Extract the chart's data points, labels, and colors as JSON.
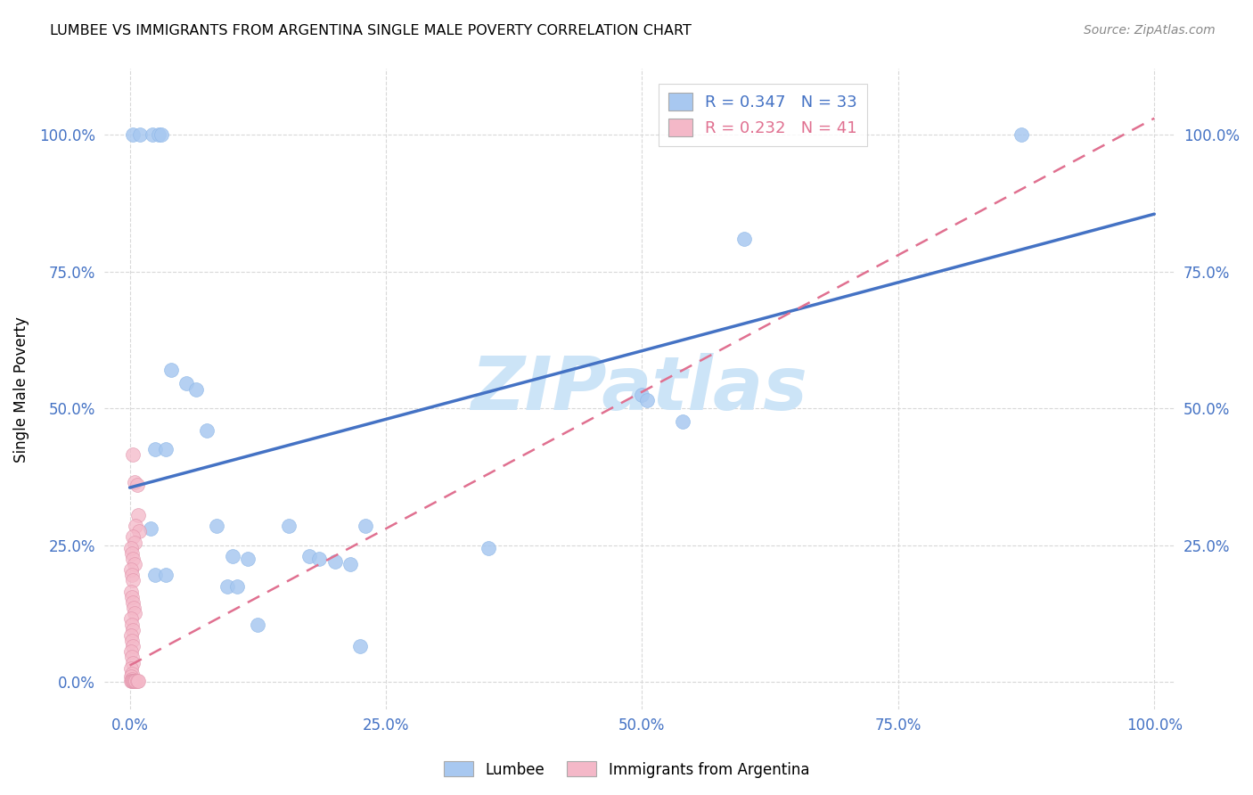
{
  "title": "LUMBEE VS IMMIGRANTS FROM ARGENTINA SINGLE MALE POVERTY CORRELATION CHART",
  "source": "Source: ZipAtlas.com",
  "ylabel": "Single Male Poverty",
  "lumbee_R": 0.347,
  "lumbee_N": 33,
  "argentina_R": 0.232,
  "argentina_N": 41,
  "lumbee_color": "#a8c8f0",
  "argentina_color": "#f4b8c8",
  "lumbee_line_color": "#4472c4",
  "argentina_line_color": "#e07090",
  "watermark_color": "#cce4f7",
  "grid_color": "#d8d8d8",
  "axis_label_color": "#4472c4",
  "lumbee_line_x0": 0.0,
  "lumbee_line_y0": 0.355,
  "lumbee_line_x1": 1.0,
  "lumbee_line_y1": 0.855,
  "argentina_line_x0": 0.0,
  "argentina_line_y0": 0.03,
  "argentina_line_x1": 1.0,
  "argentina_line_y1": 1.03,
  "lumbee_points": [
    [
      0.003,
      1.0
    ],
    [
      0.01,
      1.0
    ],
    [
      0.022,
      1.0
    ],
    [
      0.028,
      1.0
    ],
    [
      0.031,
      1.0
    ],
    [
      0.87,
      1.0
    ],
    [
      0.6,
      0.81
    ],
    [
      0.04,
      0.57
    ],
    [
      0.055,
      0.545
    ],
    [
      0.065,
      0.535
    ],
    [
      0.075,
      0.46
    ],
    [
      0.025,
      0.425
    ],
    [
      0.035,
      0.425
    ],
    [
      0.5,
      0.525
    ],
    [
      0.505,
      0.515
    ],
    [
      0.54,
      0.475
    ],
    [
      0.02,
      0.28
    ],
    [
      0.085,
      0.285
    ],
    [
      0.1,
      0.23
    ],
    [
      0.115,
      0.225
    ],
    [
      0.155,
      0.285
    ],
    [
      0.175,
      0.23
    ],
    [
      0.185,
      0.225
    ],
    [
      0.23,
      0.285
    ],
    [
      0.2,
      0.22
    ],
    [
      0.215,
      0.215
    ],
    [
      0.35,
      0.245
    ],
    [
      0.025,
      0.195
    ],
    [
      0.035,
      0.195
    ],
    [
      0.095,
      0.175
    ],
    [
      0.105,
      0.175
    ],
    [
      0.125,
      0.105
    ],
    [
      0.225,
      0.065
    ]
  ],
  "argentina_points": [
    [
      0.003,
      0.415
    ],
    [
      0.005,
      0.365
    ],
    [
      0.007,
      0.36
    ],
    [
      0.008,
      0.305
    ],
    [
      0.006,
      0.285
    ],
    [
      0.009,
      0.275
    ],
    [
      0.003,
      0.265
    ],
    [
      0.005,
      0.255
    ],
    [
      0.001,
      0.245
    ],
    [
      0.002,
      0.235
    ],
    [
      0.003,
      0.225
    ],
    [
      0.005,
      0.215
    ],
    [
      0.001,
      0.205
    ],
    [
      0.002,
      0.195
    ],
    [
      0.003,
      0.185
    ],
    [
      0.001,
      0.165
    ],
    [
      0.002,
      0.155
    ],
    [
      0.003,
      0.145
    ],
    [
      0.004,
      0.135
    ],
    [
      0.005,
      0.125
    ],
    [
      0.001,
      0.115
    ],
    [
      0.002,
      0.105
    ],
    [
      0.003,
      0.095
    ],
    [
      0.001,
      0.085
    ],
    [
      0.002,
      0.075
    ],
    [
      0.003,
      0.065
    ],
    [
      0.001,
      0.055
    ],
    [
      0.002,
      0.045
    ],
    [
      0.003,
      0.035
    ],
    [
      0.001,
      0.025
    ],
    [
      0.002,
      0.015
    ],
    [
      0.001,
      0.01
    ],
    [
      0.002,
      0.005
    ],
    [
      0.001,
      0.001
    ],
    [
      0.002,
      0.001
    ],
    [
      0.003,
      0.001
    ],
    [
      0.004,
      0.001
    ],
    [
      0.005,
      0.001
    ],
    [
      0.006,
      0.001
    ],
    [
      0.007,
      0.001
    ],
    [
      0.008,
      0.001
    ]
  ],
  "xlim": [
    -0.025,
    1.02
  ],
  "ylim": [
    -0.05,
    1.12
  ],
  "xticks": [
    0.0,
    0.25,
    0.5,
    0.75,
    1.0
  ],
  "yticks": [
    0.0,
    0.25,
    0.5,
    0.75,
    1.0
  ],
  "xtick_labels": [
    "0.0%",
    "25.0%",
    "50.0%",
    "75.0%",
    "100.0%"
  ],
  "ytick_labels": [
    "0.0%",
    "25.0%",
    "50.0%",
    "75.0%",
    "100.0%"
  ],
  "right_ytick_labels": [
    "",
    "25.0%",
    "50.0%",
    "75.0%",
    "100.0%"
  ]
}
